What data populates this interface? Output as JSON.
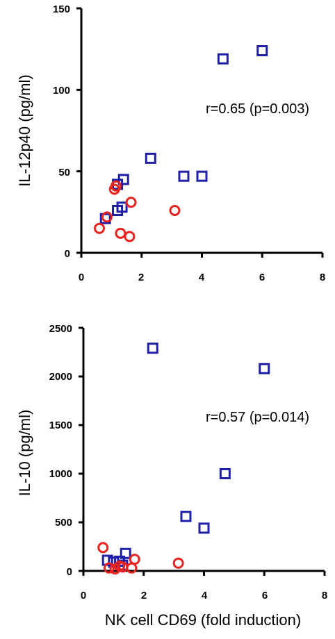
{
  "colors": {
    "square_series": "#1f1fa8",
    "circle_series": "#e8231f",
    "axis": "#000000"
  },
  "chart_data": [
    {
      "type": "scatter",
      "title": "",
      "xlabel": "",
      "ylabel": "IL-12p40 (pg/ml)",
      "xlim": [
        0,
        8
      ],
      "ylim": [
        0,
        150
      ],
      "xticks": [
        0,
        2,
        4,
        6,
        8
      ],
      "yticks": [
        0,
        50,
        100,
        150
      ],
      "x_tick_labels": [
        "0",
        "2",
        "4",
        "6",
        "8"
      ],
      "y_tick_labels": [
        "0",
        "50",
        "100",
        "150"
      ],
      "annotation": "r=0.65 (p=0.003)",
      "grid": false,
      "series": [
        {
          "marker": "square",
          "points": [
            {
              "x": 0.8,
              "y": 21
            },
            {
              "x": 1.2,
              "y": 26
            },
            {
              "x": 1.35,
              "y": 28
            },
            {
              "x": 1.2,
              "y": 42
            },
            {
              "x": 1.4,
              "y": 45
            },
            {
              "x": 2.3,
              "y": 58
            },
            {
              "x": 3.4,
              "y": 47
            },
            {
              "x": 4.0,
              "y": 47
            },
            {
              "x": 4.7,
              "y": 119
            },
            {
              "x": 6.0,
              "y": 124
            }
          ]
        },
        {
          "marker": "circle",
          "points": [
            {
              "x": 0.6,
              "y": 15
            },
            {
              "x": 0.85,
              "y": 22
            },
            {
              "x": 1.1,
              "y": 39
            },
            {
              "x": 1.15,
              "y": 41
            },
            {
              "x": 1.3,
              "y": 12
            },
            {
              "x": 1.6,
              "y": 10
            },
            {
              "x": 1.65,
              "y": 31
            },
            {
              "x": 3.1,
              "y": 26
            }
          ]
        }
      ]
    },
    {
      "type": "scatter",
      "title": "",
      "xlabel": "NK cell CD69 (fold induction)",
      "ylabel": "IL-10 (pg/ml)",
      "xlim": [
        0,
        8
      ],
      "ylim": [
        0,
        2500
      ],
      "xticks": [
        0,
        2,
        4,
        6,
        8
      ],
      "yticks": [
        0,
        500,
        1000,
        1500,
        2000,
        2500
      ],
      "x_tick_labels": [
        "0",
        "2",
        "4",
        "6",
        "8"
      ],
      "y_tick_labels": [
        "0",
        "500",
        "1000",
        "1500",
        "2000",
        "2500"
      ],
      "annotation": "r=0.57 (p=0.014)",
      "grid": false,
      "series": [
        {
          "marker": "square",
          "points": [
            {
              "x": 0.8,
              "y": 110
            },
            {
              "x": 1.0,
              "y": 90
            },
            {
              "x": 1.2,
              "y": 100
            },
            {
              "x": 1.3,
              "y": 60
            },
            {
              "x": 1.4,
              "y": 180
            },
            {
              "x": 2.3,
              "y": 2290
            },
            {
              "x": 3.4,
              "y": 560
            },
            {
              "x": 4.0,
              "y": 440
            },
            {
              "x": 4.7,
              "y": 1000
            },
            {
              "x": 6.0,
              "y": 2080
            }
          ]
        },
        {
          "marker": "circle",
          "points": [
            {
              "x": 0.65,
              "y": 240
            },
            {
              "x": 0.85,
              "y": 30
            },
            {
              "x": 1.05,
              "y": 20
            },
            {
              "x": 1.2,
              "y": 50
            },
            {
              "x": 1.3,
              "y": 40
            },
            {
              "x": 1.6,
              "y": 30
            },
            {
              "x": 1.7,
              "y": 120
            },
            {
              "x": 3.15,
              "y": 80
            }
          ]
        }
      ]
    }
  ]
}
